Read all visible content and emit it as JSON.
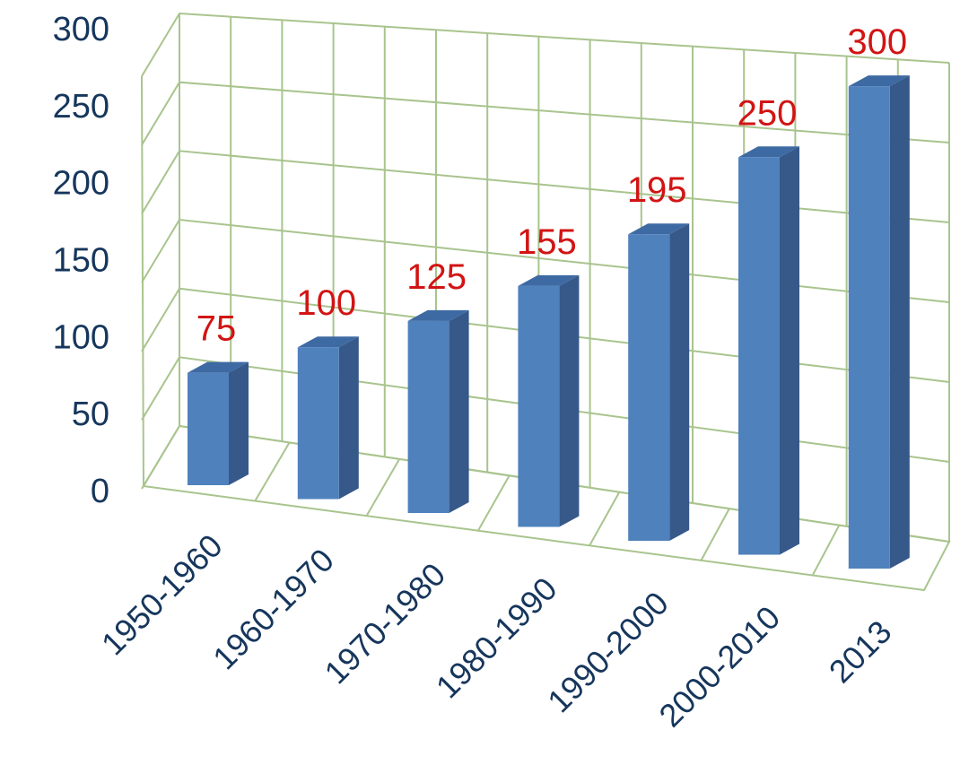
{
  "chart_data": {
    "type": "bar",
    "categories": [
      "1950-1960",
      "1960-1970",
      "1970-1980",
      "1980-1990",
      "1990-2000",
      "2000-2010",
      "2013"
    ],
    "values": [
      75,
      100,
      125,
      155,
      195,
      250,
      300
    ],
    "data_labels": [
      "75",
      "100",
      "125",
      "155",
      "195",
      "250",
      "300"
    ],
    "y_ticks": [
      "0",
      "50",
      "100",
      "150",
      "200",
      "250",
      "300"
    ],
    "ylim": [
      0,
      300
    ],
    "title": "",
    "xlabel": "",
    "ylabel": "",
    "grid": true,
    "legend": "none",
    "style": "3d-column"
  },
  "colors": {
    "bar_front": "#4f81bd",
    "bar_side": "#36598a",
    "bar_top": "#3e6aa3",
    "grid": "#a9c48e",
    "data_label": "#d21414",
    "axis_text": "#16365c"
  }
}
